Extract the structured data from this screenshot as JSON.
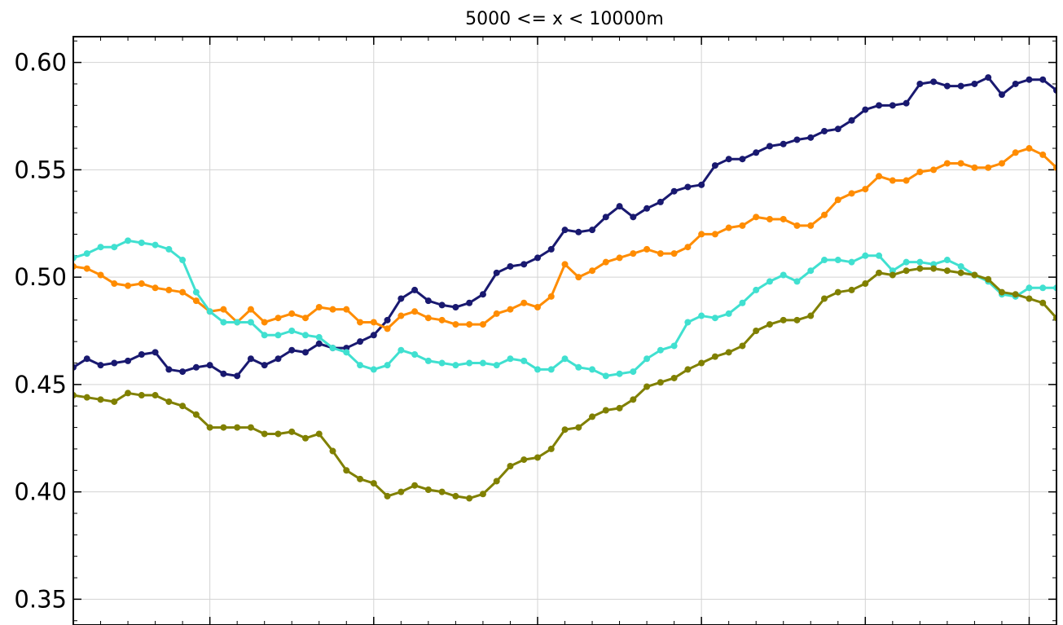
{
  "chart_data": {
    "type": "line",
    "title": "5000 <= x < 10000m",
    "xlabel": "",
    "ylabel": "",
    "ylim": [
      0.338,
      0.612
    ],
    "yticks": [
      "0.60",
      "0.55",
      "0.50",
      "0.45",
      "0.40",
      "0.35"
    ],
    "grid": true,
    "x": [
      0,
      1,
      2,
      3,
      4,
      5,
      6,
      7,
      8,
      9,
      10,
      11,
      12,
      13,
      14,
      15,
      16,
      17,
      18,
      19,
      20,
      21,
      22,
      23,
      24,
      25,
      26,
      27,
      28,
      29,
      30,
      31,
      32,
      33,
      34,
      35,
      36,
      37,
      38,
      39,
      40,
      41,
      42,
      43,
      44,
      45,
      46,
      47,
      48,
      49,
      50,
      51,
      52,
      53,
      54,
      55,
      56,
      57,
      58,
      59,
      60,
      61,
      62,
      63,
      64,
      65,
      66,
      67,
      68,
      69,
      70,
      71,
      72
    ],
    "series": [
      {
        "color": "#191970",
        "values": [
          0.458,
          0.462,
          0.459,
          0.46,
          0.461,
          0.464,
          0.465,
          0.457,
          0.456,
          0.458,
          0.459,
          0.455,
          0.454,
          0.462,
          0.459,
          0.462,
          0.466,
          0.465,
          0.469,
          0.467,
          0.467,
          0.47,
          0.473,
          0.48,
          0.49,
          0.494,
          0.489,
          0.487,
          0.486,
          0.488,
          0.492,
          0.502,
          0.505,
          0.506,
          0.509,
          0.513,
          0.522,
          0.521,
          0.522,
          0.528,
          0.533,
          0.528,
          0.532,
          0.535,
          0.54,
          0.542,
          0.543,
          0.552,
          0.555,
          0.555,
          0.558,
          0.561,
          0.562,
          0.564,
          0.565,
          0.568,
          0.569,
          0.573,
          0.578,
          0.58,
          0.58,
          0.581,
          0.59,
          0.591,
          0.589,
          0.589,
          0.59,
          0.593,
          0.585,
          0.59,
          0.592,
          0.592,
          0.587
        ]
      },
      {
        "color": "#ff8c00",
        "values": [
          0.505,
          0.504,
          0.501,
          0.497,
          0.496,
          0.497,
          0.495,
          0.494,
          0.493,
          0.489,
          0.484,
          0.485,
          0.479,
          0.485,
          0.479,
          0.481,
          0.483,
          0.481,
          0.486,
          0.485,
          0.485,
          0.479,
          0.479,
          0.476,
          0.482,
          0.484,
          0.481,
          0.48,
          0.478,
          0.478,
          0.478,
          0.483,
          0.485,
          0.488,
          0.486,
          0.491,
          0.506,
          0.5,
          0.503,
          0.507,
          0.509,
          0.511,
          0.513,
          0.511,
          0.511,
          0.514,
          0.52,
          0.52,
          0.523,
          0.524,
          0.528,
          0.527,
          0.527,
          0.524,
          0.524,
          0.529,
          0.536,
          0.539,
          0.541,
          0.547,
          0.545,
          0.545,
          0.549,
          0.55,
          0.553,
          0.553,
          0.551,
          0.551,
          0.553,
          0.558,
          0.56,
          0.557,
          0.551
        ]
      },
      {
        "color": "#40e0d0",
        "values": [
          0.509,
          0.511,
          0.514,
          0.514,
          0.517,
          0.516,
          0.515,
          0.513,
          0.508,
          0.493,
          0.484,
          0.479,
          0.479,
          0.479,
          0.473,
          0.473,
          0.475,
          0.473,
          0.472,
          0.467,
          0.465,
          0.459,
          0.457,
          0.459,
          0.466,
          0.464,
          0.461,
          0.46,
          0.459,
          0.46,
          0.46,
          0.459,
          0.462,
          0.461,
          0.457,
          0.457,
          0.462,
          0.458,
          0.457,
          0.454,
          0.455,
          0.456,
          0.462,
          0.466,
          0.468,
          0.479,
          0.482,
          0.481,
          0.483,
          0.488,
          0.494,
          0.498,
          0.501,
          0.498,
          0.503,
          0.508,
          0.508,
          0.507,
          0.51,
          0.51,
          0.503,
          0.507,
          0.507,
          0.506,
          0.508,
          0.505,
          0.501,
          0.498,
          0.492,
          0.491,
          0.495,
          0.495,
          0.495
        ]
      },
      {
        "color": "#808000",
        "values": [
          0.445,
          0.444,
          0.443,
          0.442,
          0.446,
          0.445,
          0.445,
          0.442,
          0.44,
          0.436,
          0.43,
          0.43,
          0.43,
          0.43,
          0.427,
          0.427,
          0.428,
          0.425,
          0.427,
          0.419,
          0.41,
          0.406,
          0.404,
          0.398,
          0.4,
          0.403,
          0.401,
          0.4,
          0.398,
          0.397,
          0.399,
          0.405,
          0.412,
          0.415,
          0.416,
          0.42,
          0.429,
          0.43,
          0.435,
          0.438,
          0.439,
          0.443,
          0.449,
          0.451,
          0.453,
          0.457,
          0.46,
          0.463,
          0.465,
          0.468,
          0.475,
          0.478,
          0.48,
          0.48,
          0.482,
          0.49,
          0.493,
          0.494,
          0.497,
          0.502,
          0.501,
          0.503,
          0.504,
          0.504,
          0.503,
          0.502,
          0.501,
          0.499,
          0.493,
          0.492,
          0.49,
          0.488,
          0.481
        ]
      }
    ]
  }
}
